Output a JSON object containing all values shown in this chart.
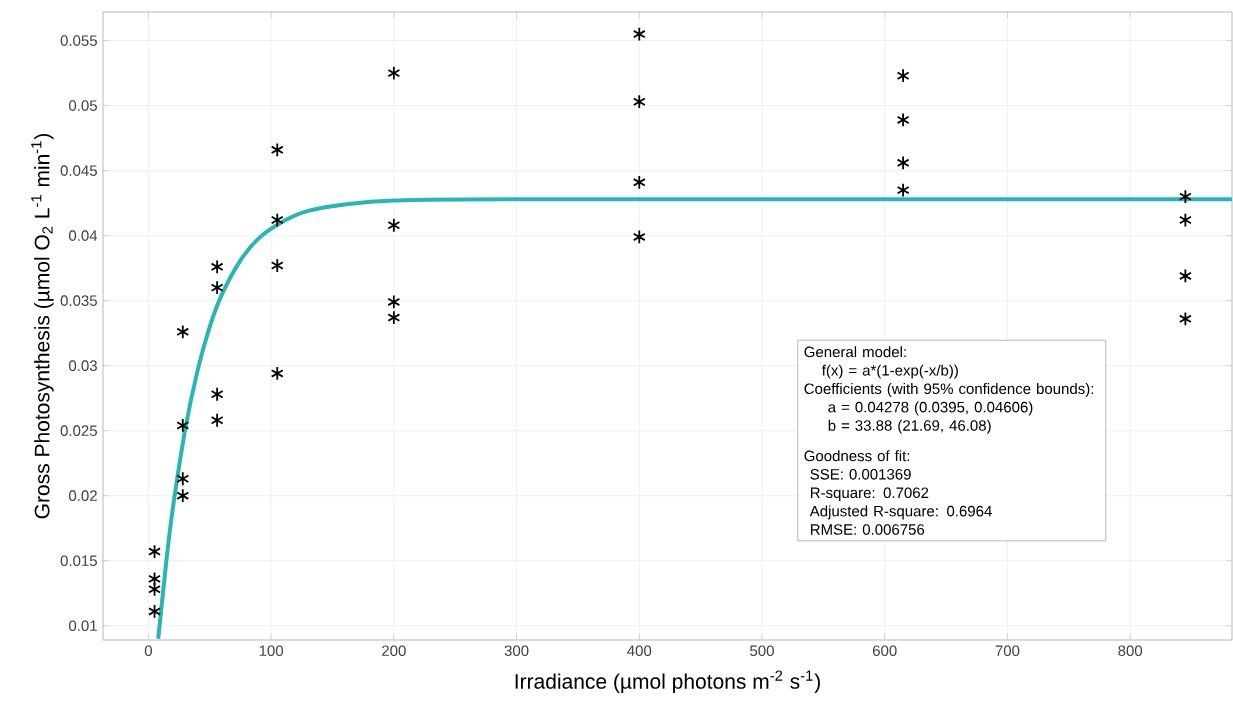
{
  "chart_data": {
    "type": "scatter",
    "xlabel": "Irradiance (µmol photons m$^{-2}$ s$^{-1}$)",
    "ylabel": "Gross Photosynthesis (µmol O$_{2}$ L$^{-1}$ min$^{-1}$)",
    "xlim": [
      -37,
      883
    ],
    "ylim": [
      0.0089,
      0.0572
    ],
    "xticks": [
      0,
      100,
      200,
      300,
      400,
      500,
      600,
      700,
      800
    ],
    "yticks": [
      0.01,
      0.015,
      0.02,
      0.025,
      0.03,
      0.035,
      0.04,
      0.045,
      0.05,
      0.055
    ],
    "grid": true,
    "series": [
      {
        "color": "#000000",
        "marker": "cross",
        "x": [
          5,
          5,
          5,
          5,
          28,
          28,
          28,
          28,
          56,
          56,
          56,
          56,
          105,
          105,
          105,
          105,
          200,
          200,
          200,
          200,
          400,
          400,
          400,
          400,
          615,
          615,
          615,
          615,
          845,
          845,
          845,
          845
        ],
        "values": [
          0.0157,
          0.0136,
          0.0128,
          0.0111,
          0.0326,
          0.0254,
          0.0213,
          0.02,
          0.0376,
          0.036,
          0.0278,
          0.0258,
          0.0466,
          0.0412,
          0.0377,
          0.0294,
          0.0525,
          0.0408,
          0.0349,
          0.0337,
          0.0555,
          0.0503,
          0.0441,
          0.0399,
          0.0523,
          0.0489,
          0.0456,
          0.0435,
          0.043,
          0.0412,
          0.0369,
          0.0336
        ]
      },
      {
        "type": "line",
        "color": "#2ab5b5",
        "x": [
          8,
          15,
          20,
          30,
          40,
          50,
          60,
          75,
          90,
          110,
          130,
          160,
          200,
          300,
          883
        ],
        "values": [
          0.009,
          0.0153,
          0.0191,
          0.0251,
          0.0296,
          0.033,
          0.0355,
          0.0381,
          0.0398,
          0.0411,
          0.0419,
          0.0424,
          0.0427,
          0.0428,
          0.0428
        ]
      }
    ],
    "annotations": [
      "General model:",
      "f(x) = a*(1-exp(-x/b))",
      "Coefficients (with 95% confidence bounds):",
      "a =     0.04278  (0.0395, 0.04606)",
      "b =       33.88  (21.69, 46.08)",
      "Goodness of fit:",
      "SSE: 0.001369",
      "R-square: 0.7062",
      "Adjusted R-square: 0.6964",
      "RMSE: 0.006756"
    ]
  }
}
